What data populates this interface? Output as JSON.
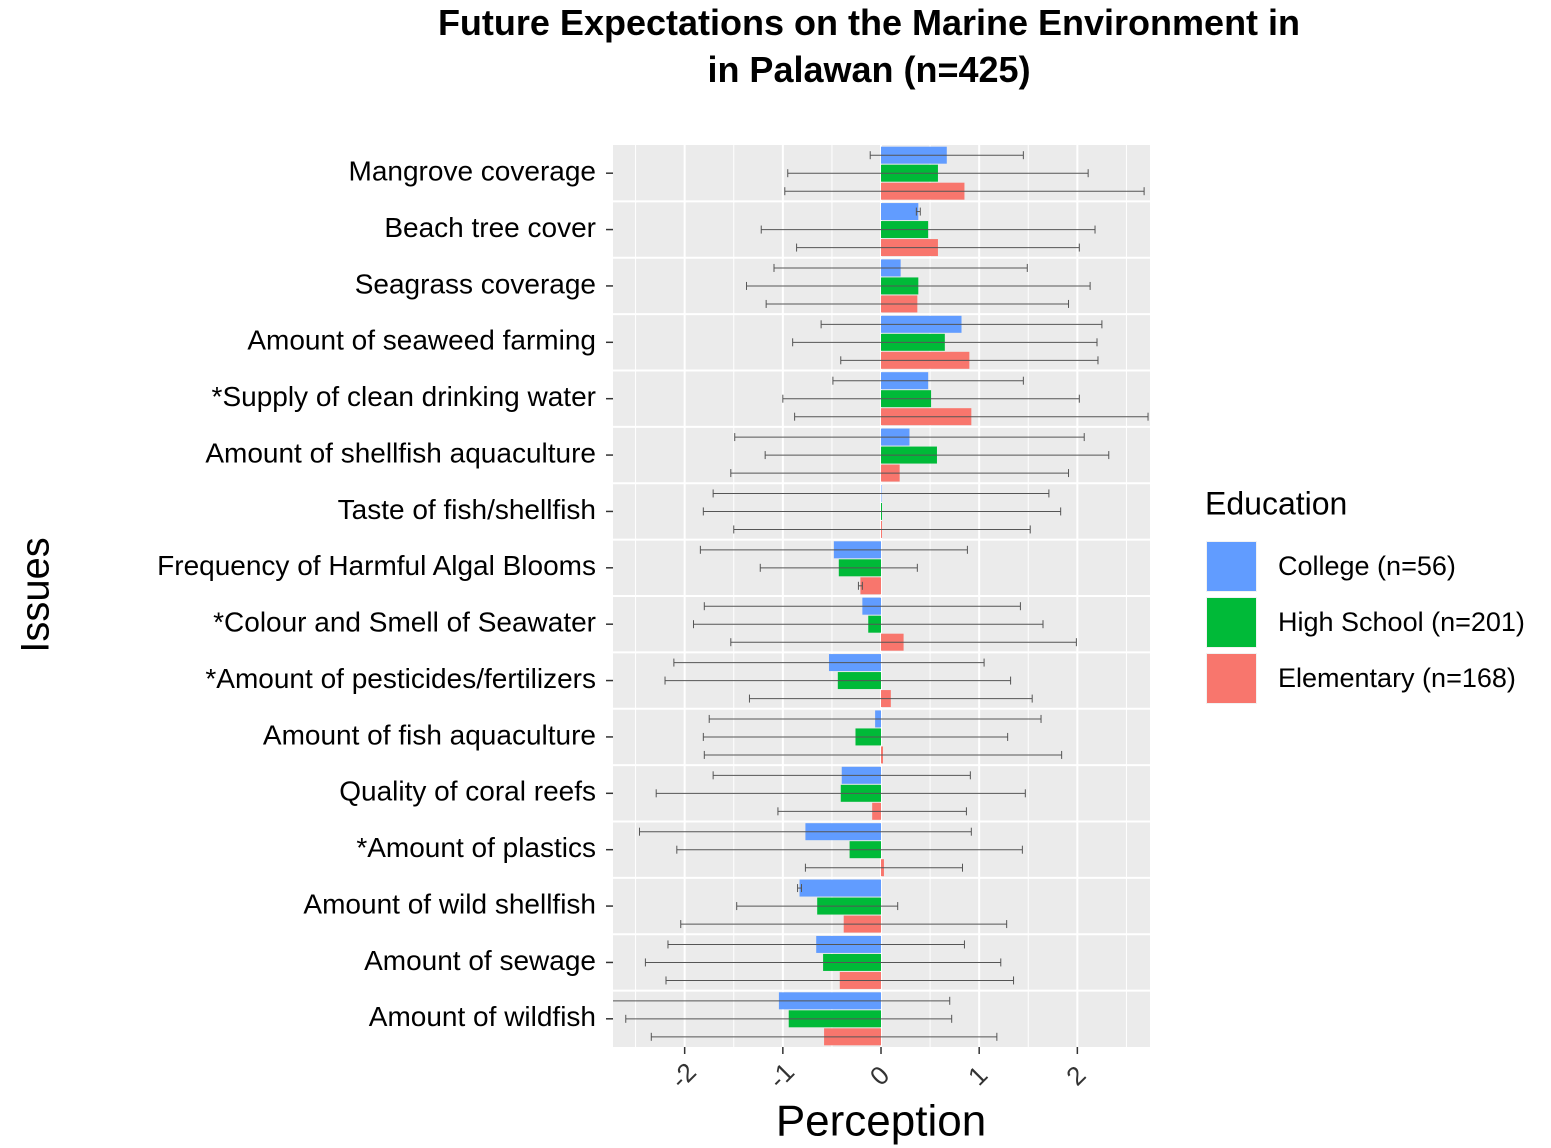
{
  "chart_data": {
    "type": "bar",
    "orientation": "horizontal",
    "title": "Future Expectations on the Marine Environment in\nin Palawan (n=425)",
    "x_label": "Perception",
    "y_label": "Issues",
    "legend_title": "Education",
    "legend_position": "right",
    "categories": [
      "Mangrove coverage",
      "Beach tree cover",
      "Seagrass coverage",
      "Amount of seaweed farming",
      "*Supply of clean drinking water",
      "Amount of shellfish aquaculture",
      "Taste of fish/shellfish",
      "Frequency of Harmful Algal Blooms",
      "*Colour and Smell of Seawater",
      "*Amount of pesticides/fertilizers",
      "Amount of fish aquaculture",
      "Quality of coral reefs",
      "*Amount of plastics",
      "Amount of wild shellfish",
      "Amount of sewage",
      "Amount of wildfish"
    ],
    "series": [
      {
        "name": "College (n=56)",
        "color": "#619CFF",
        "values": [
          0.67,
          0.38,
          0.2,
          0.82,
          0.48,
          0.29,
          0.0,
          -0.48,
          -0.19,
          -0.53,
          -0.06,
          -0.4,
          -0.77,
          -0.83,
          -0.66,
          -1.04
        ],
        "errors": [
          0.78,
          0.02,
          1.29,
          1.43,
          0.97,
          1.78,
          1.71,
          1.36,
          1.61,
          1.58,
          1.69,
          1.31,
          1.69,
          0.02,
          1.51,
          1.74
        ]
      },
      {
        "name": "High School (n=201)",
        "color": "#00BA38",
        "values": [
          0.58,
          0.48,
          0.38,
          0.65,
          0.51,
          0.57,
          0.01,
          -0.43,
          -0.13,
          -0.44,
          -0.26,
          -0.41,
          -0.32,
          -0.65,
          -0.59,
          -0.94
        ],
        "errors": [
          1.53,
          1.7,
          1.75,
          1.55,
          1.51,
          1.75,
          1.82,
          0.8,
          1.78,
          1.76,
          1.55,
          1.88,
          1.76,
          0.82,
          1.81,
          1.66
        ]
      },
      {
        "name": "Elementary (n=168)",
        "color": "#F8766D",
        "values": [
          0.85,
          0.58,
          0.37,
          0.9,
          0.92,
          0.19,
          0.01,
          -0.21,
          0.23,
          0.1,
          0.02,
          -0.09,
          0.03,
          -0.38,
          -0.42,
          -0.58
        ],
        "errors": [
          1.83,
          1.44,
          1.54,
          1.31,
          1.8,
          1.72,
          1.51,
          0.02,
          1.76,
          1.44,
          1.82,
          0.96,
          0.8,
          1.66,
          1.77,
          1.76
        ]
      }
    ],
    "xlim": [
      -2.73,
      2.74
    ],
    "xticks": [
      -2,
      -1,
      0,
      1,
      2
    ],
    "grid": true
  }
}
